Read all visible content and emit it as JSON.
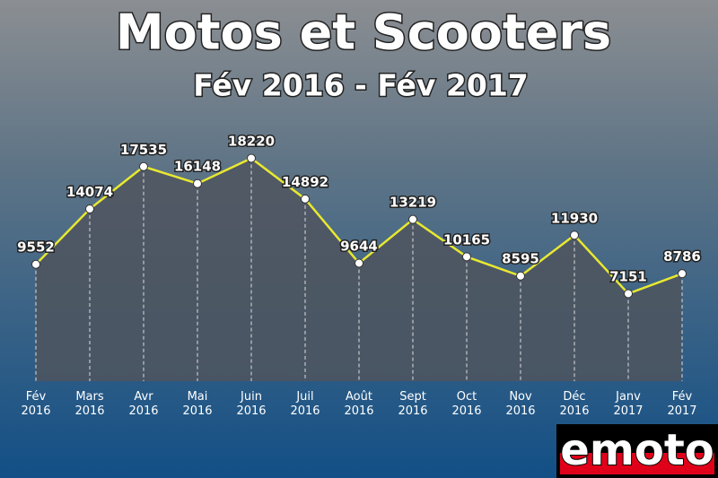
{
  "chart_data": {
    "type": "line",
    "title": "Motos et Scooters",
    "subtitle": "Fév 2016 - Fév 2017",
    "categories": [
      [
        "Fév",
        "2016"
      ],
      [
        "Mars",
        "2016"
      ],
      [
        "Avr",
        "2016"
      ],
      [
        "Mai",
        "2016"
      ],
      [
        "Juin",
        "2016"
      ],
      [
        "Juil",
        "2016"
      ],
      [
        "Août",
        "2016"
      ],
      [
        "Sept",
        "2016"
      ],
      [
        "Oct",
        "2016"
      ],
      [
        "Nov",
        "2016"
      ],
      [
        "Déc",
        "2016"
      ],
      [
        "Janv",
        "2017"
      ],
      [
        "Fév",
        "2017"
      ]
    ],
    "values": [
      9552,
      14074,
      17535,
      16148,
      18220,
      14892,
      9644,
      13219,
      10165,
      8595,
      11930,
      7151,
      8786
    ],
    "color": "#e8e830",
    "area_color": "#4f555e",
    "ylim": [
      0,
      24000
    ]
  },
  "logo": "emoto"
}
